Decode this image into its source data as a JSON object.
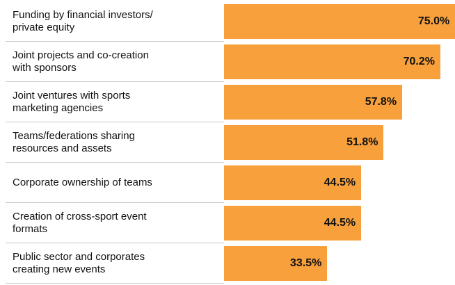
{
  "chart_data": {
    "type": "bar",
    "orientation": "horizontal",
    "categories": [
      "Funding by financial investors/\nprivate equity",
      "Joint projects and co-creation\nwith sponsors",
      "Joint ventures with sports\nmarketing agencies",
      "Teams/federations sharing\nresources and assets",
      "Corporate ownership of teams",
      "Creation of cross-sport event\nformats",
      "Public sector and corporates\ncreating new events"
    ],
    "values": [
      75.0,
      70.2,
      57.8,
      51.8,
      44.5,
      44.5,
      33.5
    ],
    "value_labels": [
      "75.0%",
      "70.2%",
      "57.8%",
      "51.8%",
      "44.5%",
      "44.5%",
      "33.5%"
    ],
    "color": "#f7a03c"
  }
}
